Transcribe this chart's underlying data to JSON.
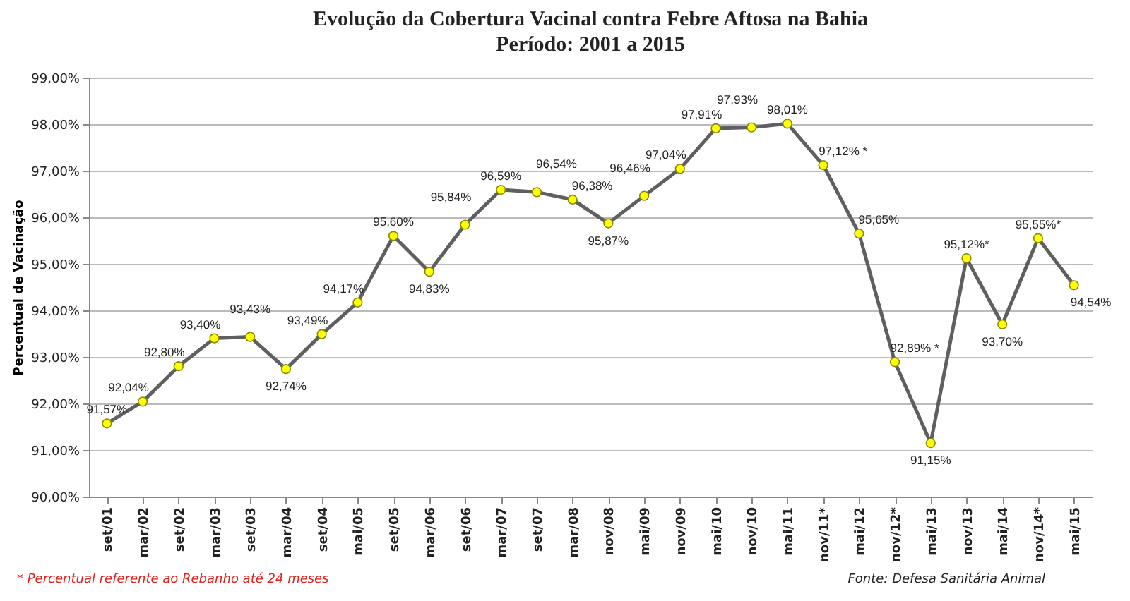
{
  "chart_data": {
    "type": "line",
    "title": "Evolução da Cobertura Vacinal contra Febre Aftosa na Bahia",
    "subtitle": "Período: 2001 a 2015",
    "ylabel": "Percentual de Vacinação",
    "categories": [
      "set/01",
      "mar/02",
      "set/02",
      "mar/03",
      "set/03",
      "mar/04",
      "set/04",
      "mai/05",
      "set/05",
      "mar/06",
      "set/06",
      "mar/07",
      "set/07",
      "mar/08",
      "nov/08",
      "mai/09",
      "nov/09",
      "mai/10",
      "nov/10",
      "mai/11",
      "nov/11*",
      "mai/12",
      "nov/12*",
      "mai/13",
      "nov/13",
      "mai/14",
      "nov/14*",
      "mai/15"
    ],
    "series": [
      {
        "color": "#5f5f5f",
        "values": [
          91.57,
          92.04,
          92.8,
          93.4,
          93.43,
          92.74,
          93.49,
          94.17,
          95.6,
          94.83,
          95.84,
          96.59,
          96.54,
          96.38,
          95.87,
          96.46,
          97.04,
          97.91,
          97.93,
          98.01,
          97.12,
          95.65,
          92.89,
          91.15,
          95.12,
          93.7,
          95.55,
          94.54
        ],
        "value_labels": [
          "91,57%",
          "92,04%",
          "92,80%",
          "93,40%",
          "93,43%",
          "92,74%",
          "93,49%",
          "94,17%",
          "95,60%",
          "94,83%",
          "95,84%",
          "96,59%",
          "96,54%",
          "96,38%",
          "95,87%",
          "96,46%",
          "97,04%",
          "97,91%",
          "97,93%",
          "98,01%",
          "97,12% *",
          "95,65%",
          "92,89% *",
          "91,15%",
          "95,12%*",
          "93,70%",
          "95,55%*",
          "94,54%"
        ]
      }
    ],
    "ylim": [
      90,
      99
    ],
    "yticks": [
      {
        "value": 90,
        "label": "90,00%"
      },
      {
        "value": 91,
        "label": "91,00%"
      },
      {
        "value": 92,
        "label": "92,00%"
      },
      {
        "value": 93,
        "label": "93,00%"
      },
      {
        "value": 94,
        "label": "94,00%"
      },
      {
        "value": 95,
        "label": "95,00%"
      },
      {
        "value": 96,
        "label": "96,00%"
      },
      {
        "value": 97,
        "label": "97,00%"
      },
      {
        "value": 98,
        "label": "98,00%"
      },
      {
        "value": 99,
        "label": "99,00%"
      }
    ],
    "grid": "y",
    "marker": "circle",
    "line_style": "solid",
    "annotations": [
      "* Percentual referente ao Rebanho até 24 meses",
      "Fonte: Defesa Sanitária Animal"
    ]
  }
}
